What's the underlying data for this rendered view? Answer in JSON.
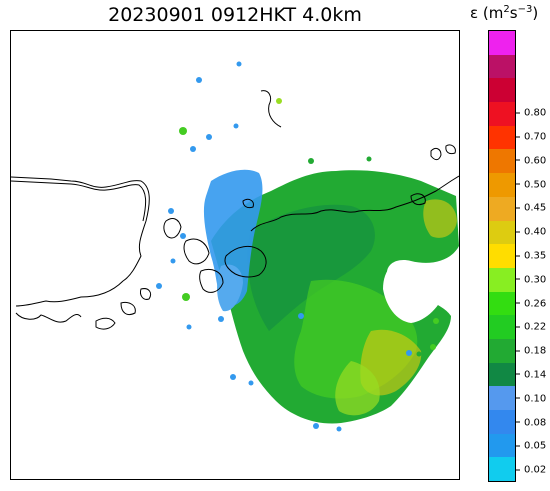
{
  "title": "20230901 0912HKT 4.0km",
  "colorbar": {
    "label_symbol": "ε",
    "label_unit_base": "(m",
    "label_unit_exp1": "2",
    "label_unit_mid": "s",
    "label_unit_exp2": "−3",
    "label_unit_end": ")",
    "levels": [
      "0.02",
      "0.05",
      "0.08",
      "0.10",
      "0.14",
      "0.18",
      "0.22",
      "0.26",
      "0.30",
      "0.35",
      "0.40",
      "0.45",
      "0.50",
      "0.60",
      "0.70",
      "0.80"
    ],
    "colors_top_to_bottom": [
      "#ee22ee",
      "#bb1166",
      "#cc0033",
      "#ee1122",
      "#ff3300",
      "#ee7700",
      "#ee9900",
      "#eeaa22",
      "#ddcc11",
      "#ffdd00",
      "#88ee22",
      "#33dd11",
      "#22cc22",
      "#22aa33",
      "#118844",
      "#5599ee",
      "#3388ee",
      "#2299ee",
      "#11ccee"
    ]
  },
  "map": {
    "colors": {
      "coast": "#000000",
      "low_blue": "#3399ee",
      "mid_blue": "#55aaee",
      "green_dark": "#118844",
      "green": "#22aa33",
      "green_light": "#44cc22",
      "yellow_green": "#99dd22",
      "yellow": "#ddcc11"
    }
  }
}
